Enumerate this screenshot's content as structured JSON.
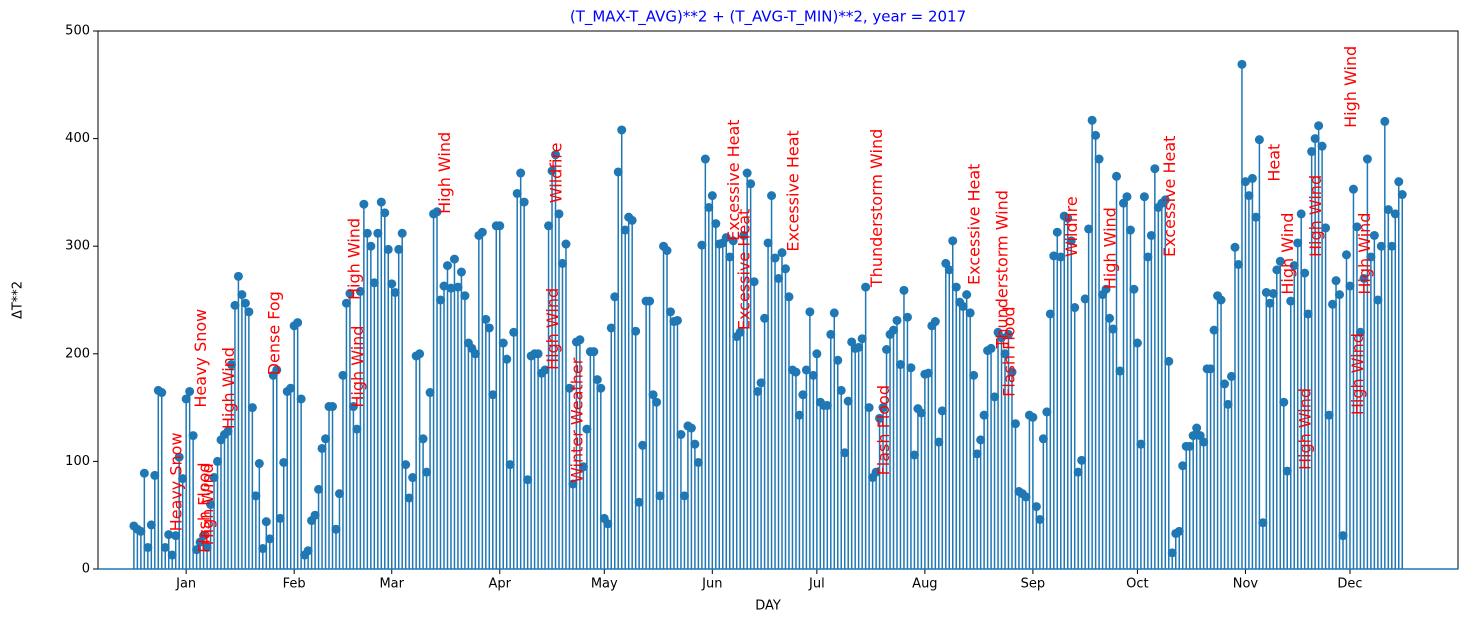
{
  "chart_data": {
    "type": "stem",
    "title": "(T_MAX-T_AVG)**2 + (T_AVG-T_MIN)**2, year = 2017",
    "x_label": "DAY",
    "y_label": "ΔT**2",
    "color": "#1f77b4",
    "x": [
      -15,
      -14,
      -13,
      -12,
      -11,
      -10,
      -9,
      -8,
      -7,
      -6,
      -5,
      -4,
      -3,
      -2,
      -1,
      0,
      1,
      2,
      3,
      4,
      5,
      6,
      7,
      8,
      9,
      10,
      11,
      12,
      13,
      14,
      15,
      16,
      17,
      18,
      19,
      20,
      21,
      22,
      23,
      24,
      25,
      26,
      27,
      28,
      29,
      30,
      31,
      32,
      33,
      34,
      35,
      36,
      37,
      38,
      39,
      40,
      41,
      42,
      43,
      44,
      45,
      46,
      47,
      48,
      49,
      50,
      51,
      52,
      53,
      54,
      55,
      56,
      57,
      58,
      59,
      60,
      61,
      62,
      63,
      64,
      65,
      66,
      67,
      68,
      69,
      70,
      71,
      72,
      73,
      74,
      75,
      76,
      77,
      78,
      79,
      80,
      81,
      82,
      83,
      84,
      85,
      86,
      87,
      88,
      89,
      90,
      91,
      92,
      93,
      94,
      95,
      96,
      97,
      98,
      99,
      100,
      101,
      102,
      103,
      104,
      105,
      106,
      107,
      108,
      109,
      110,
      111,
      112,
      113,
      114,
      115,
      116,
      117,
      118,
      119,
      120,
      121,
      122,
      123,
      124,
      125,
      126,
      127,
      128,
      129,
      130,
      131,
      132,
      133,
      134,
      135,
      136,
      137,
      138,
      139,
      140,
      141,
      142,
      143,
      144,
      145,
      146,
      147,
      148,
      149,
      150,
      151,
      152,
      153,
      154,
      155,
      156,
      157,
      158,
      159,
      160,
      161,
      162,
      163,
      164,
      165,
      166,
      167,
      168,
      169,
      170,
      171,
      172,
      173,
      174,
      175,
      176,
      177,
      178,
      179,
      180,
      181,
      182,
      183,
      184,
      185,
      186,
      187,
      188,
      189,
      190,
      191,
      192,
      193,
      194,
      195,
      196,
      197,
      198,
      199,
      200,
      201,
      202,
      203,
      204,
      205,
      206,
      207,
      208,
      209,
      210,
      211,
      212,
      213,
      214,
      215,
      216,
      217,
      218,
      219,
      220,
      221,
      222,
      223,
      224,
      225,
      226,
      227,
      228,
      229,
      230,
      231,
      232,
      233,
      234,
      235,
      236,
      237,
      238,
      239,
      240,
      241,
      242,
      243,
      244,
      245,
      246,
      247,
      248,
      249,
      250,
      251,
      252,
      253,
      254,
      255,
      256,
      257,
      258,
      259,
      260,
      261,
      262,
      263,
      264,
      265,
      266,
      267,
      268,
      269,
      270,
      271,
      272,
      273,
      274,
      275,
      276,
      277,
      278,
      279,
      280,
      281,
      282,
      283,
      284,
      285,
      286,
      287,
      288,
      289,
      290,
      291,
      292,
      293,
      294,
      295,
      296,
      297,
      298,
      299,
      300,
      301,
      302,
      303,
      304,
      305,
      306,
      307,
      308,
      309,
      310,
      311,
      312,
      313,
      314,
      315,
      316,
      317,
      318,
      319,
      320,
      321,
      322,
      323,
      324,
      325,
      326,
      327,
      328,
      329,
      330,
      331,
      332,
      333,
      334,
      335,
      336,
      337,
      338,
      339,
      340,
      341,
      342,
      343,
      344,
      345,
      346,
      347,
      348,
      349
    ],
    "values": [
      40,
      37,
      35,
      89,
      20,
      41,
      87,
      166,
      164,
      20,
      32,
      13,
      31,
      104,
      84,
      158,
      165,
      124,
      18,
      25,
      31,
      20,
      60,
      85,
      100,
      120,
      125,
      128,
      190,
      245,
      272,
      255,
      247,
      239,
      150,
      68,
      98,
      19,
      44,
      28,
      180,
      185,
      47,
      99,
      165,
      168,
      226,
      229,
      158,
      13,
      17,
      45,
      50,
      74,
      112,
      121,
      151,
      151,
      37,
      70,
      180,
      247,
      256,
      151,
      130,
      258,
      339,
      312,
      300,
      266,
      312,
      341,
      331,
      297,
      265,
      257,
      297,
      312,
      97,
      66,
      85,
      198,
      200,
      121,
      90,
      164,
      330,
      332,
      250,
      263,
      282,
      261,
      288,
      262,
      276,
      254,
      210,
      205,
      200,
      310,
      313,
      232,
      224,
      162,
      319,
      319,
      210,
      195,
      97,
      220,
      349,
      368,
      341,
      83,
      198,
      200,
      200,
      182,
      185,
      319,
      370,
      385,
      330,
      284,
      302,
      168,
      79,
      211,
      213,
      95,
      130,
      202,
      202,
      176,
      168,
      47,
      42,
      224,
      253,
      369,
      408,
      315,
      327,
      324,
      221,
      62,
      115,
      249,
      249,
      162,
      155,
      68,
      300,
      296,
      239,
      230,
      231,
      125,
      68,
      133,
      131,
      116,
      99,
      301,
      381,
      336,
      347,
      321,
      302,
      303,
      308,
      290,
      305,
      216,
      220,
      310,
      368,
      358,
      267,
      165,
      173,
      233,
      303,
      347,
      289,
      270,
      294,
      279,
      253,
      185,
      183,
      143,
      162,
      185,
      239,
      180,
      200,
      155,
      152,
      152,
      218,
      238,
      194,
      166,
      108,
      156,
      211,
      205,
      206,
      214,
      262,
      150,
      85,
      90,
      140,
      150,
      204,
      218,
      222,
      231,
      190,
      259,
      234,
      187,
      106,
      149,
      145,
      181,
      182,
      226,
      230,
      118,
      147,
      284,
      278,
      305,
      262,
      248,
      244,
      255,
      238,
      180,
      107,
      120,
      143,
      203,
      205,
      160,
      220,
      215,
      200,
      218,
      183,
      135,
      72,
      70,
      67,
      143,
      141,
      58,
      46,
      121,
      146,
      237,
      291,
      313,
      290,
      328,
      326,
      305,
      243,
      90,
      101,
      251,
      316,
      417,
      403,
      381,
      255,
      260,
      233,
      223,
      365,
      184,
      340,
      346,
      315,
      260,
      210,
      116,
      346,
      290,
      310,
      372,
      336,
      340,
      343,
      193,
      15,
      33,
      35,
      96,
      114,
      114,
      124,
      131,
      124,
      118,
      186,
      186,
      222,
      254,
      250,
      172,
      153,
      179,
      299,
      283,
      469,
      360,
      347,
      363,
      327,
      399,
      43,
      257,
      247,
      256,
      278,
      286,
      155,
      91,
      249,
      282,
      303,
      330,
      275,
      237,
      388,
      400,
      412,
      393,
      317,
      143,
      246,
      268,
      255,
      31,
      292,
      263,
      353,
      318,
      220,
      270,
      381,
      290,
      310,
      250,
      300,
      416,
      334,
      300,
      330,
      360,
      348
    ],
    "xlim": [
      -25.3,
      365
    ],
    "ylim": [
      0,
      500
    ],
    "xticks": [
      {
        "value": 0,
        "label": "Jan"
      },
      {
        "value": 31,
        "label": "Feb"
      },
      {
        "value": 59,
        "label": "Mar"
      },
      {
        "value": 90,
        "label": "Apr"
      },
      {
        "value": 120,
        "label": "May"
      },
      {
        "value": 151,
        "label": "Jun"
      },
      {
        "value": 181,
        "label": "Jul"
      },
      {
        "value": 212,
        "label": "Aug"
      },
      {
        "value": 243,
        "label": "Sep"
      },
      {
        "value": 273,
        "label": "Oct"
      },
      {
        "value": 304,
        "label": "Nov"
      },
      {
        "value": 334,
        "label": "Dec"
      }
    ],
    "yticks": [
      0,
      100,
      200,
      300,
      400,
      500
    ],
    "annotation_color": "#ff0000",
    "annotations": [
      {
        "text": "Heavy Snow",
        "x": -3,
        "y": 35
      },
      {
        "text": "Heavy Snow",
        "x": 4,
        "y": 150
      },
      {
        "text": "Flash Flood",
        "x": 5,
        "y": 15
      },
      {
        "text": "High Wind",
        "x": 6,
        "y": 22
      },
      {
        "text": "High Wind",
        "x": 12,
        "y": 130
      },
      {
        "text": "Dense Fog",
        "x": 25,
        "y": 180
      },
      {
        "text": "High Wind",
        "x": 48,
        "y": 250
      },
      {
        "text": "High Wind",
        "x": 49,
        "y": 150
      },
      {
        "text": "High Wind",
        "x": 74,
        "y": 330
      },
      {
        "text": "High Wind",
        "x": 105,
        "y": 185
      },
      {
        "text": "Wildfire",
        "x": 106,
        "y": 340
      },
      {
        "text": "Winter Weather",
        "x": 112,
        "y": 80
      },
      {
        "text": "Excessive Heat",
        "x": 157,
        "y": 305
      },
      {
        "text": "Excessive Heat",
        "x": 160,
        "y": 222
      },
      {
        "text": "Excessive Heat",
        "x": 174,
        "y": 295
      },
      {
        "text": "Thunderstorm Wind",
        "x": 198,
        "y": 262
      },
      {
        "text": "Flash Flood",
        "x": 200,
        "y": 87
      },
      {
        "text": "Excessive Heat",
        "x": 226,
        "y": 264
      },
      {
        "text": "Thunderstorm Wind",
        "x": 234,
        "y": 205
      },
      {
        "text": "Flash Flood",
        "x": 236,
        "y": 160
      },
      {
        "text": "Wildfire",
        "x": 254,
        "y": 290
      },
      {
        "text": "High Wind",
        "x": 265,
        "y": 260
      },
      {
        "text": "Excessive Heat",
        "x": 282,
        "y": 290
      },
      {
        "text": "Heat",
        "x": 312,
        "y": 360
      },
      {
        "text": "High Wind",
        "x": 316,
        "y": 255
      },
      {
        "text": "High Wind",
        "x": 321,
        "y": 92
      },
      {
        "text": "High Wind",
        "x": 324,
        "y": 290
      },
      {
        "text": "High Wind",
        "x": 334,
        "y": 410
      },
      {
        "text": "High Wind",
        "x": 336,
        "y": 143
      },
      {
        "text": "High Wind",
        "x": 338,
        "y": 255
      }
    ]
  }
}
